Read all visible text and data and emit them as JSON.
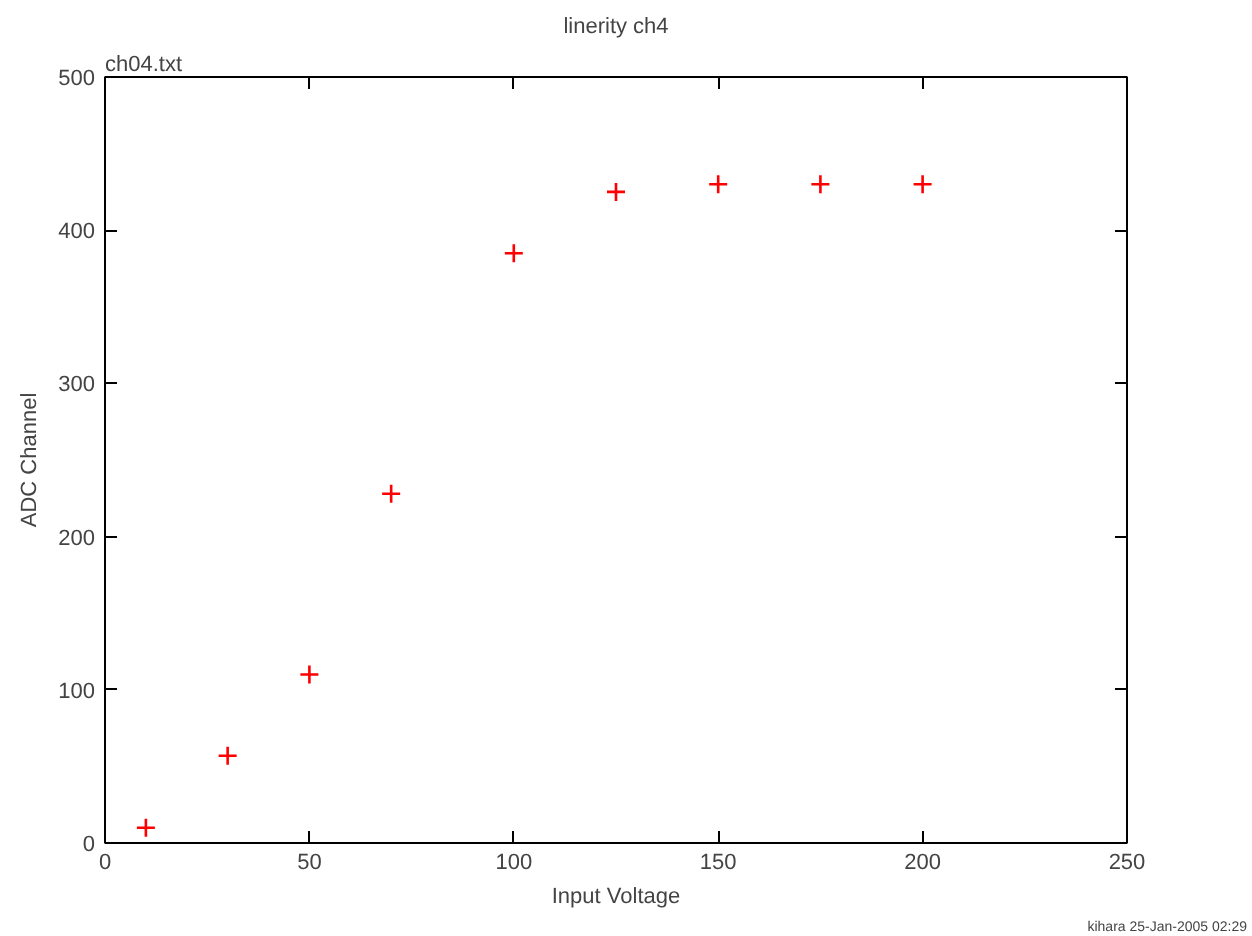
{
  "chart_data": {
    "type": "scatter",
    "title": "linerity ch4",
    "xlabel": "Input Voltage",
    "ylabel": "ADC Channel",
    "annotations": [
      "ch04.txt",
      "kihara 25-Jan-2005 02:29"
    ],
    "x": [
      10,
      30,
      50,
      70,
      100,
      125,
      150,
      175,
      200
    ],
    "series": [
      {
        "color": "#ff0000",
        "values": [
          10,
          57,
          110,
          228,
          385,
          425,
          430,
          430,
          430
        ]
      }
    ],
    "marker": "cross",
    "grid": false,
    "xlim": [
      0,
      250
    ],
    "xticks": [
      0,
      50,
      100,
      150,
      200,
      250
    ],
    "ylim": [
      0,
      500
    ],
    "yticks": [
      0,
      100,
      200,
      300,
      400,
      500
    ]
  }
}
